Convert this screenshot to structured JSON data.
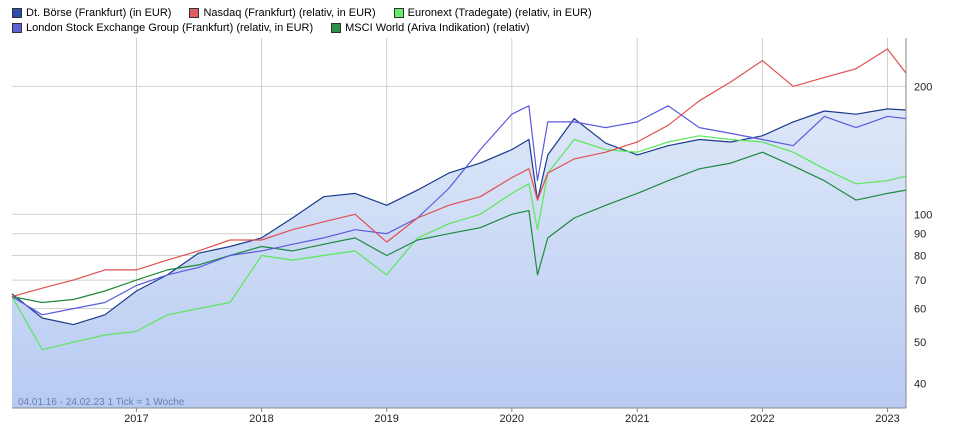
{
  "chart_data": {
    "type": "line",
    "y_scale": "log",
    "y_ticks": [
      40,
      50,
      60,
      70,
      80,
      90,
      100,
      200
    ],
    "y_range": [
      35,
      260
    ],
    "x_range": [
      "2016-01-04",
      "2023-02-24"
    ],
    "x_ticks": [
      {
        "date": "2017-01-01",
        "label": "2017"
      },
      {
        "date": "2018-01-01",
        "label": "2018"
      },
      {
        "date": "2019-01-01",
        "label": "2019"
      },
      {
        "date": "2020-01-01",
        "label": "2020"
      },
      {
        "date": "2021-01-01",
        "label": "2021"
      },
      {
        "date": "2022-01-01",
        "label": "2022"
      },
      {
        "date": "2023-01-01",
        "label": "2023"
      }
    ],
    "grid": true,
    "legend_placement": "top-left",
    "footnote": "04.01.16 - 24.02.23   1 Tick = 1 Woche",
    "series": [
      {
        "name": "Dt. Börse (Frankfurt) (in EUR)",
        "color": "#1a3a8c",
        "swatch": "#2a4fb0",
        "area": true,
        "points": [
          [
            "2016-01-04",
            65
          ],
          [
            "2016-04-01",
            57
          ],
          [
            "2016-07-01",
            55
          ],
          [
            "2016-10-01",
            58
          ],
          [
            "2017-01-01",
            66
          ],
          [
            "2017-04-01",
            72
          ],
          [
            "2017-07-01",
            81
          ],
          [
            "2017-10-01",
            84
          ],
          [
            "2018-01-01",
            88
          ],
          [
            "2018-04-01",
            98
          ],
          [
            "2018-07-01",
            110
          ],
          [
            "2018-10-01",
            112
          ],
          [
            "2019-01-01",
            105
          ],
          [
            "2019-04-01",
            114
          ],
          [
            "2019-07-01",
            125
          ],
          [
            "2019-10-01",
            132
          ],
          [
            "2020-01-01",
            142
          ],
          [
            "2020-02-20",
            150
          ],
          [
            "2020-03-16",
            108
          ],
          [
            "2020-04-15",
            138
          ],
          [
            "2020-07-01",
            168
          ],
          [
            "2020-10-01",
            147
          ],
          [
            "2021-01-01",
            138
          ],
          [
            "2021-04-01",
            145
          ],
          [
            "2021-07-01",
            150
          ],
          [
            "2021-10-01",
            148
          ],
          [
            "2022-01-01",
            153
          ],
          [
            "2022-04-01",
            165
          ],
          [
            "2022-07-01",
            175
          ],
          [
            "2022-10-01",
            172
          ],
          [
            "2023-01-01",
            177
          ],
          [
            "2023-02-24",
            176
          ]
        ]
      },
      {
        "name": "Nasdaq (Frankfurt) (relativ, in EUR)",
        "color": "#e05050",
        "swatch": "#e06060",
        "area": false,
        "points": [
          [
            "2016-01-04",
            64
          ],
          [
            "2016-04-01",
            67
          ],
          [
            "2016-07-01",
            70
          ],
          [
            "2016-10-01",
            74
          ],
          [
            "2017-01-01",
            74
          ],
          [
            "2017-04-01",
            78
          ],
          [
            "2017-07-01",
            82
          ],
          [
            "2017-10-01",
            87
          ],
          [
            "2018-01-01",
            87
          ],
          [
            "2018-04-01",
            92
          ],
          [
            "2018-07-01",
            96
          ],
          [
            "2018-10-01",
            100
          ],
          [
            "2019-01-01",
            86
          ],
          [
            "2019-04-01",
            98
          ],
          [
            "2019-07-01",
            105
          ],
          [
            "2019-10-01",
            110
          ],
          [
            "2020-01-01",
            122
          ],
          [
            "2020-02-20",
            128
          ],
          [
            "2020-03-16",
            108
          ],
          [
            "2020-04-15",
            125
          ],
          [
            "2020-07-01",
            135
          ],
          [
            "2020-10-01",
            140
          ],
          [
            "2021-01-01",
            148
          ],
          [
            "2021-04-01",
            162
          ],
          [
            "2021-07-01",
            185
          ],
          [
            "2021-10-01",
            205
          ],
          [
            "2022-01-01",
            230
          ],
          [
            "2022-04-01",
            200
          ],
          [
            "2022-07-01",
            210
          ],
          [
            "2022-10-01",
            220
          ],
          [
            "2023-01-01",
            245
          ],
          [
            "2023-02-24",
            215
          ]
        ]
      },
      {
        "name": "Euronext (Tradegate) (relativ, in EUR)",
        "color": "#5ce65c",
        "swatch": "#66ee66",
        "area": false,
        "points": [
          [
            "2016-01-04",
            64
          ],
          [
            "2016-04-01",
            48
          ],
          [
            "2016-07-01",
            50
          ],
          [
            "2016-10-01",
            52
          ],
          [
            "2017-01-01",
            53
          ],
          [
            "2017-04-01",
            58
          ],
          [
            "2017-07-01",
            60
          ],
          [
            "2017-10-01",
            62
          ],
          [
            "2018-01-01",
            80
          ],
          [
            "2018-04-01",
            78
          ],
          [
            "2018-07-01",
            80
          ],
          [
            "2018-10-01",
            82
          ],
          [
            "2019-01-01",
            72
          ],
          [
            "2019-04-01",
            88
          ],
          [
            "2019-07-01",
            95
          ],
          [
            "2019-10-01",
            100
          ],
          [
            "2020-01-01",
            112
          ],
          [
            "2020-02-20",
            118
          ],
          [
            "2020-03-16",
            92
          ],
          [
            "2020-04-15",
            125
          ],
          [
            "2020-07-01",
            150
          ],
          [
            "2020-10-01",
            142
          ],
          [
            "2021-01-01",
            140
          ],
          [
            "2021-04-01",
            148
          ],
          [
            "2021-07-01",
            153
          ],
          [
            "2021-10-01",
            150
          ],
          [
            "2022-01-01",
            148
          ],
          [
            "2022-04-01",
            140
          ],
          [
            "2022-07-01",
            128
          ],
          [
            "2022-10-01",
            118
          ],
          [
            "2023-01-01",
            120
          ],
          [
            "2023-02-24",
            123
          ]
        ]
      },
      {
        "name": "London Stock Exchange Group (Frankfurt) (relativ, in EUR)",
        "color": "#5a5adc",
        "swatch": "#6060d8",
        "area": false,
        "points": [
          [
            "2016-01-04",
            64
          ],
          [
            "2016-04-01",
            58
          ],
          [
            "2016-07-01",
            60
          ],
          [
            "2016-10-01",
            62
          ],
          [
            "2017-01-01",
            68
          ],
          [
            "2017-04-01",
            72
          ],
          [
            "2017-07-01",
            75
          ],
          [
            "2017-10-01",
            80
          ],
          [
            "2018-01-01",
            82
          ],
          [
            "2018-04-01",
            85
          ],
          [
            "2018-07-01",
            88
          ],
          [
            "2018-10-01",
            92
          ],
          [
            "2019-01-01",
            90
          ],
          [
            "2019-04-01",
            98
          ],
          [
            "2019-07-01",
            115
          ],
          [
            "2019-10-01",
            142
          ],
          [
            "2020-01-01",
            172
          ],
          [
            "2020-02-20",
            180
          ],
          [
            "2020-03-16",
            120
          ],
          [
            "2020-04-15",
            165
          ],
          [
            "2020-07-01",
            165
          ],
          [
            "2020-10-01",
            160
          ],
          [
            "2021-01-01",
            165
          ],
          [
            "2021-04-01",
            180
          ],
          [
            "2021-07-01",
            160
          ],
          [
            "2021-10-01",
            155
          ],
          [
            "2022-01-01",
            150
          ],
          [
            "2022-04-01",
            145
          ],
          [
            "2022-07-01",
            170
          ],
          [
            "2022-10-01",
            160
          ],
          [
            "2023-01-01",
            170
          ],
          [
            "2023-02-24",
            168
          ]
        ]
      },
      {
        "name": "MSCI World (Ariva Indikation) (relativ)",
        "color": "#1e8a3c",
        "swatch": "#2f8f46",
        "area": false,
        "points": [
          [
            "2016-01-04",
            64
          ],
          [
            "2016-04-01",
            62
          ],
          [
            "2016-07-01",
            63
          ],
          [
            "2016-10-01",
            66
          ],
          [
            "2017-01-01",
            70
          ],
          [
            "2017-04-01",
            74
          ],
          [
            "2017-07-01",
            76
          ],
          [
            "2017-10-01",
            80
          ],
          [
            "2018-01-01",
            84
          ],
          [
            "2018-04-01",
            82
          ],
          [
            "2018-07-01",
            85
          ],
          [
            "2018-10-01",
            88
          ],
          [
            "2019-01-01",
            80
          ],
          [
            "2019-04-01",
            87
          ],
          [
            "2019-07-01",
            90
          ],
          [
            "2019-10-01",
            93
          ],
          [
            "2020-01-01",
            100
          ],
          [
            "2020-02-20",
            102
          ],
          [
            "2020-03-16",
            72
          ],
          [
            "2020-04-15",
            88
          ],
          [
            "2020-07-01",
            98
          ],
          [
            "2020-10-01",
            105
          ],
          [
            "2021-01-01",
            112
          ],
          [
            "2021-04-01",
            120
          ],
          [
            "2021-07-01",
            128
          ],
          [
            "2021-10-01",
            132
          ],
          [
            "2022-01-01",
            140
          ],
          [
            "2022-04-01",
            130
          ],
          [
            "2022-07-01",
            120
          ],
          [
            "2022-10-01",
            108
          ],
          [
            "2023-01-01",
            112
          ],
          [
            "2023-02-24",
            114
          ]
        ]
      }
    ]
  },
  "colors": {
    "area_top": "#dde7f8",
    "area_bottom": "#b7cbf2",
    "grid": "#d0d0d0",
    "axis": "#888888",
    "tick_text": "#222222",
    "footnote_text": "#6a7faa"
  }
}
